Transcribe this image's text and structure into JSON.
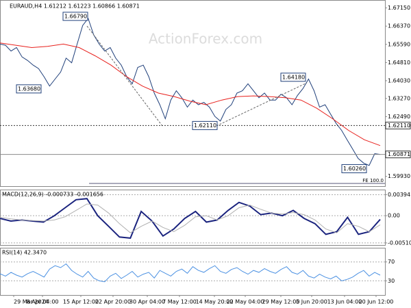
{
  "header": {
    "title": "EURAUD,H4  1.61212 1.61223 1.60866 1.60871",
    "watermark": "ActionForex.com"
  },
  "chart_data": [
    {
      "type": "line",
      "title": "EURAUD,H4",
      "x_labels": [
        "29 Mar 2024",
        "8 Apr 04:00",
        "15 Apr 12:00",
        "22 Apr 20:00",
        "30 Apr 04:00",
        "7 May 12:00",
        "14 May 20:00",
        "22 May 04:00",
        "29 May 12:00",
        "5 Jun 20:00",
        "13 Jun 04:00",
        "20 Jun 12:00"
      ],
      "ylim": [
        1.5951,
        1.6749
      ],
      "yticks": [
        {
          "value": 1.6715,
          "label": "1.67150"
        },
        {
          "value": 1.6637,
          "label": "1.66370"
        },
        {
          "value": 1.6559,
          "label": "1.65590"
        },
        {
          "value": 1.6481,
          "label": "1.64810"
        },
        {
          "value": 1.6403,
          "label": "1.64030"
        },
        {
          "value": 1.6327,
          "label": "1.63270"
        },
        {
          "value": 1.6249,
          "label": "1.62490"
        },
        {
          "value": 1.5993,
          "label": "1.59930"
        }
      ],
      "series": [
        {
          "name": "EURAUD",
          "color": "#1f3f7a",
          "values": [
            1.656,
            1.6555,
            1.653,
            1.6545,
            1.6505,
            1.649,
            1.647,
            1.6455,
            1.642,
            1.638,
            1.641,
            1.644,
            1.65,
            1.648,
            1.656,
            1.664,
            1.667,
            1.66,
            1.656,
            1.653,
            1.6545,
            1.65,
            1.647,
            1.642,
            1.639,
            1.646,
            1.647,
            1.642,
            1.635,
            1.63,
            1.624,
            1.632,
            1.636,
            1.633,
            1.629,
            1.632,
            1.63,
            1.631,
            1.629,
            1.625,
            1.623,
            1.628,
            1.63,
            1.635,
            1.636,
            1.639,
            1.636,
            1.633,
            1.635,
            1.632,
            1.632,
            1.6345,
            1.633,
            1.63,
            1.634,
            1.637,
            1.641,
            1.636,
            1.629,
            1.63,
            1.626,
            1.622,
            1.619,
            1.615,
            1.611,
            1.607,
            1.605,
            1.604,
            1.609,
            1.6087
          ]
        },
        {
          "name": "MA",
          "color": "#e8201c",
          "values": [
            1.6565,
            1.6555,
            1.6545,
            1.655,
            1.656,
            1.6545,
            1.651,
            1.647,
            1.642,
            1.638,
            1.635,
            1.6335,
            1.6315,
            1.63,
            1.632,
            1.6335,
            1.6338,
            1.6335,
            1.633,
            1.632,
            1.6285,
            1.624,
            1.619,
            1.615,
            1.6125
          ]
        }
      ],
      "annotations": [
        {
          "value": 1.6679,
          "label": "1.66790"
        },
        {
          "value": 1.6368,
          "label": "1.63680"
        },
        {
          "value": 1.6211,
          "label": "1.62110"
        },
        {
          "value": 1.6418,
          "label": "1.64180"
        },
        {
          "value": 1.6026,
          "label": "1.60260"
        }
      ],
      "levels": [
        {
          "value": 1.6211,
          "label": "1.62110"
        },
        {
          "value": 1.60871,
          "label": "1.60871"
        }
      ],
      "fe_label": "FE 100.0"
    },
    {
      "type": "line",
      "title": "MACD(12,26,9) -0.000733 -0.001656",
      "ylim": [
        -0.0055,
        0.0049
      ],
      "yticks": [
        {
          "value": 0.003941,
          "label": "0.003941"
        },
        {
          "value": 0,
          "label": "0.00"
        },
        {
          "value": -0.005103,
          "label": "-0.005103"
        }
      ],
      "series": [
        {
          "name": "MACD",
          "color": "#1a237e",
          "values": [
            -0.0005,
            -0.001,
            -0.0008,
            -0.001,
            -0.0012,
            0.0,
            0.0015,
            0.003,
            0.0032,
            0.0,
            -0.002,
            -0.004,
            -0.0042,
            0.0008,
            -0.001,
            -0.0038,
            -0.0025,
            -0.0005,
            0.0008,
            -0.0012,
            -0.0008,
            0.001,
            0.0025,
            0.0018,
            0.0002,
            0.0005,
            0.0,
            0.001,
            -0.0005,
            -0.0015,
            -0.0035,
            -0.003,
            -0.0003,
            -0.0035,
            -0.003,
            -0.0007
          ]
        },
        {
          "name": "Signal",
          "color": "#b0b0b0",
          "values": [
            -0.0003,
            -0.0006,
            -0.0008,
            -0.0009,
            -0.001,
            -0.0008,
            -0.0002,
            0.001,
            0.0022,
            0.002,
            0.0005,
            -0.0015,
            -0.0032,
            -0.002,
            -0.001,
            -0.0022,
            -0.003,
            -0.0018,
            -0.0002,
            0.0,
            -0.0008,
            0.0,
            0.0015,
            0.002,
            0.0012,
            0.0005,
            0.0003,
            0.0006,
            0.0002,
            -0.0008,
            -0.0025,
            -0.0032,
            -0.0015,
            -0.002,
            -0.003,
            -0.0017
          ]
        }
      ]
    },
    {
      "type": "line",
      "title": "RSI(14) 42.3470",
      "ylim": [
        0,
        100
      ],
      "yticks": [
        70,
        30
      ],
      "series": [
        {
          "name": "RSI",
          "color": "#4a90e2",
          "values": [
            45,
            40,
            48,
            42,
            38,
            45,
            50,
            44,
            38,
            55,
            62,
            58,
            66,
            52,
            44,
            38,
            50,
            36,
            30,
            28,
            40,
            46,
            35,
            42,
            50,
            38,
            44,
            48,
            36,
            52,
            46,
            40,
            50,
            55,
            46,
            60,
            52,
            48,
            56,
            62,
            50,
            46,
            54,
            58,
            50,
            44,
            52,
            48,
            56,
            50,
            46,
            54,
            60,
            48,
            44,
            52,
            40,
            36,
            44,
            38,
            34,
            40,
            30,
            33,
            38,
            46,
            52,
            40,
            48,
            42
          ]
        }
      ]
    }
  ]
}
